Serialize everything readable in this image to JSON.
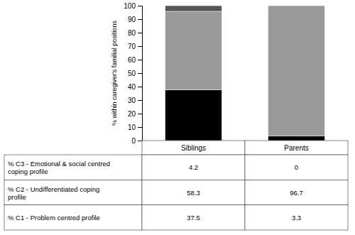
{
  "chart_data": {
    "type": "bar",
    "stacked": true,
    "ylabel": "% within caregiver's familial positions",
    "categories": [
      "Siblings",
      "Parents"
    ],
    "series": [
      {
        "name": "% C1 - Problem centred profile",
        "color": "#000000",
        "values": [
          37.5,
          3.3
        ]
      },
      {
        "name": "% C2 - Undifferentiated coping\nprofile",
        "color": "#999999",
        "values": [
          58.3,
          96.7
        ]
      },
      {
        "name": "% C3 - Emotional & social centred\ncoping profile",
        "color": "#555555",
        "values": [
          4.2,
          0.0
        ]
      }
    ],
    "ylim": [
      0,
      100
    ],
    "yticks": [
      0,
      10,
      20,
      30,
      40,
      50,
      60,
      70,
      80,
      90,
      100
    ],
    "grid": false,
    "legend": "bottom"
  }
}
